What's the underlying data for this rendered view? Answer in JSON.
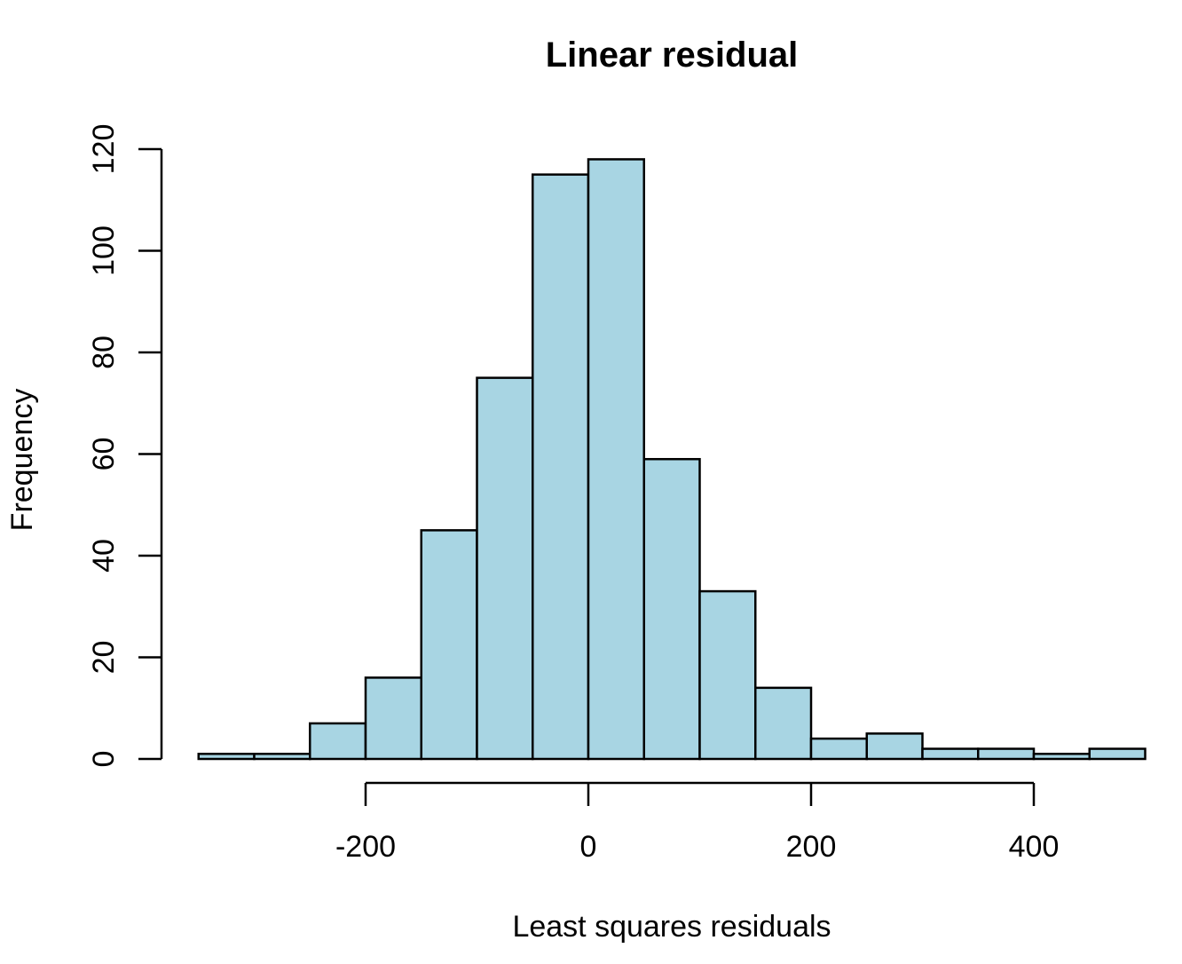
{
  "chart_data": {
    "type": "bar",
    "title": "Linear residual",
    "xlabel": "Least squares residuals",
    "ylabel": "Frequency",
    "bar_color": "#A8D5E3",
    "bin_edges": [
      -350,
      -300,
      -250,
      -200,
      -150,
      -100,
      -50,
      0,
      50,
      100,
      150,
      200,
      250,
      300,
      350,
      400,
      450,
      500
    ],
    "values": [
      1,
      1,
      7,
      16,
      45,
      75,
      115,
      118,
      59,
      33,
      14,
      4,
      5,
      2,
      2,
      1,
      2
    ],
    "x_ticks": [
      -200,
      0,
      200,
      400
    ],
    "x_tick_labels": [
      "-200",
      "0",
      "200",
      "400"
    ],
    "y_ticks": [
      0,
      20,
      40,
      60,
      80,
      100,
      120
    ],
    "y_tick_labels": [
      "0",
      "20",
      "40",
      "60",
      "80",
      "100",
      "120"
    ],
    "xlim": [
      -350,
      500
    ],
    "ylim": [
      0,
      120
    ],
    "grid": false
  }
}
